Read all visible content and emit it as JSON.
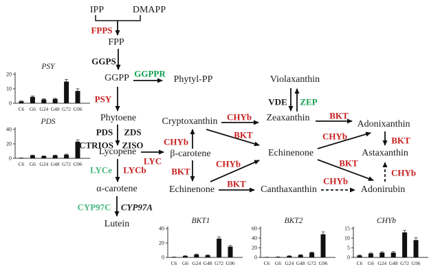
{
  "figure": {
    "description": "Carotenoid biosynthesis pathway with gene expression bar charts",
    "background": "#ffffff",
    "colors": {
      "enzyme_red": "#c81e1e",
      "enzyme_green": "#0e9d4e",
      "enzyme_green_light": "#45b87c",
      "text_black": "#1a1a1a",
      "bar_black": "#111111"
    }
  },
  "nodes": {
    "ipp": "IPP",
    "dmapp": "DMAPP",
    "fpp": "FPP",
    "ggpp": "GGPP",
    "phytyl_pp": "Phytyl-PP",
    "phytoene": "Phytoene",
    "lycopene": "Lycopene",
    "beta_carotene": "β-carotene",
    "alpha_carotene": "α-carotene",
    "lutein": "Lutein",
    "cryptoxanthin": "Cryptoxanthin",
    "zeaxanthin": "Zeaxanthin",
    "violaxanthin": "Violaxanthin",
    "adonixanthin": "Adonixanthin",
    "echinenone_mid": "Echinenone",
    "echinenone_low": "Echinenone",
    "astaxanthin": "Astaxanthin",
    "canthaxanthin": "Canthaxanthin",
    "adonirubin": "Adonirubin"
  },
  "enzymes": {
    "FPPS": "FPPS",
    "GGPS": "GGPS",
    "GGPPR": "GGPPR",
    "PSY": "PSY",
    "PDS": "PDS",
    "ZDS": "ZDS",
    "CTRIOS": "CTRIOS",
    "ZISO": "ZISO",
    "LYC": "LYC",
    "LYCe": "LYCe",
    "LYCb": "LYCb",
    "CYP97C": "CYP97C",
    "CYP97A": "CYP97A",
    "CHYb": "CHYb",
    "BKT": "BKT",
    "VDE": "VDE",
    "ZEP": "ZEP"
  },
  "chart_data": [
    {
      "type": "bar",
      "title": "PSY",
      "categories": [
        "C6",
        "G6",
        "G24",
        "G48",
        "G72",
        "G96"
      ],
      "values": [
        1.3,
        4.4,
        2.7,
        3,
        15,
        8.5
      ],
      "errors": [
        0.3,
        0.6,
        0.4,
        0.4,
        1.5,
        1.5
      ],
      "yticks": [
        0,
        10,
        20
      ],
      "ylim": [
        0,
        20
      ],
      "xlabel": "",
      "ylabel": "",
      "grid": false,
      "legend": false
    },
    {
      "type": "bar",
      "title": "PDS",
      "categories": [
        "C6",
        "G6",
        "G24",
        "G48",
        "G72",
        "G96"
      ],
      "values": [
        0.5,
        4,
        3,
        4,
        5,
        23
      ],
      "errors": [
        0.1,
        0.5,
        0.4,
        0.5,
        0.8,
        2.5
      ],
      "yticks": [
        0,
        20,
        40
      ],
      "ylim": [
        0,
        40
      ],
      "xlabel": "",
      "ylabel": "",
      "grid": false,
      "legend": false
    },
    {
      "type": "bar",
      "title": "BKT1",
      "categories": [
        "C6",
        "G6",
        "G24",
        "G48",
        "G72",
        "G96"
      ],
      "values": [
        0.5,
        2,
        4,
        3,
        26,
        15
      ],
      "errors": [
        0.1,
        0.3,
        0.6,
        0.5,
        2.5,
        1.5
      ],
      "yticks": [
        0,
        20,
        40
      ],
      "ylim": [
        0,
        40
      ],
      "xlabel": "",
      "ylabel": "",
      "grid": false,
      "legend": false
    },
    {
      "type": "bar",
      "title": "BKT2",
      "categories": [
        "C6",
        "G6",
        "G24",
        "G48",
        "G72",
        "G96"
      ],
      "values": [
        0.5,
        1,
        3,
        5,
        10,
        48
      ],
      "errors": [
        0.1,
        0.2,
        0.4,
        0.6,
        1,
        5
      ],
      "yticks": [
        0,
        20,
        40,
        60
      ],
      "ylim": [
        0,
        60
      ],
      "xlabel": "",
      "ylabel": "",
      "grid": false,
      "legend": false
    },
    {
      "type": "bar",
      "title": "CHYb",
      "categories": [
        "C6",
        "G6",
        "G24",
        "G48",
        "G72",
        "G96"
      ],
      "values": [
        1,
        2,
        2.5,
        2.5,
        13,
        9
      ],
      "errors": [
        0.2,
        0.3,
        0.4,
        0.5,
        1,
        1.2
      ],
      "yticks": [
        0,
        5,
        10,
        15
      ],
      "ylim": [
        0,
        15
      ],
      "xlabel": "",
      "ylabel": "",
      "grid": false,
      "legend": false
    }
  ]
}
